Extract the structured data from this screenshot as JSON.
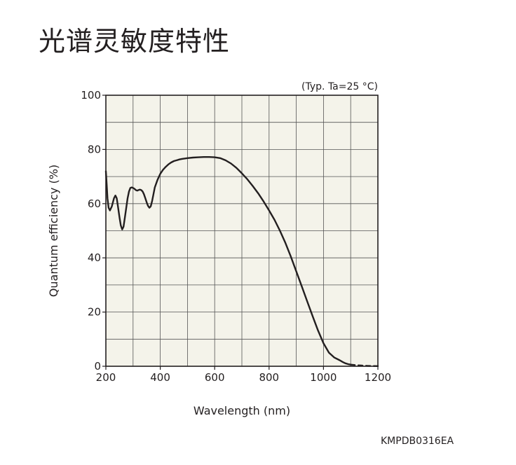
{
  "page_title": "光谱灵敏度特性",
  "figure_code": "KMPDB0316EA",
  "chart_data": {
    "type": "line",
    "title": "",
    "condition": "(Typ. Ta=25 °C)",
    "xlabel": "Wavelength (nm)",
    "ylabel": "Quantum efficiency (%)",
    "xlim": [
      200,
      1200
    ],
    "ylim": [
      0,
      100
    ],
    "x_ticks": [
      200,
      400,
      600,
      800,
      1000,
      1200
    ],
    "y_ticks": [
      0,
      20,
      40,
      60,
      80,
      100
    ],
    "x_grid_step": 100,
    "y_grid_step": 10,
    "grid": true,
    "plot_background": "#f4f3ea",
    "line_color": "#231f20",
    "grid_color": "#555555",
    "series": [
      {
        "style": "solid",
        "x": [
          200,
          203,
          206,
          210,
          215,
          222,
          230,
          235,
          240,
          245,
          250,
          255,
          260,
          265,
          270,
          275,
          280,
          285,
          290,
          295,
          300,
          305,
          310,
          315,
          320,
          325,
          330,
          335,
          340,
          345,
          350,
          355,
          360,
          365,
          370,
          375,
          380,
          390,
          400,
          410,
          420,
          430,
          440,
          450,
          460,
          470,
          480,
          500,
          520,
          540,
          560,
          580,
          600,
          620,
          640,
          660,
          680,
          700,
          720,
          740,
          760,
          780,
          800,
          820,
          840,
          860,
          880,
          900,
          920,
          940,
          960,
          980,
          1000,
          1020,
          1040,
          1060,
          1070,
          1080,
          1090,
          1100
        ],
        "y": [
          72,
          67,
          62,
          58.5,
          57.5,
          59,
          62,
          63,
          62,
          58.5,
          55,
          52,
          50.5,
          51.5,
          55,
          58.5,
          62,
          64.5,
          65.8,
          66,
          65.8,
          65.5,
          65,
          64.8,
          65,
          65.2,
          65,
          64.5,
          63.5,
          62,
          60.5,
          59.2,
          58.5,
          59,
          61,
          63.5,
          66,
          68.8,
          71,
          72.5,
          73.6,
          74.5,
          75.2,
          75.7,
          76,
          76.3,
          76.5,
          76.8,
          77,
          77.1,
          77.2,
          77.2,
          77.1,
          76.8,
          76,
          74.8,
          73.2,
          71.2,
          69,
          66.5,
          63.8,
          60.8,
          57.5,
          54,
          50,
          45.5,
          40.5,
          35,
          29.5,
          24,
          18.5,
          13.2,
          8.5,
          5,
          3.2,
          2.2,
          1.6,
          1.1,
          0.8,
          0.6
        ]
      },
      {
        "style": "dashed",
        "x": [
          1100,
          1120,
          1140,
          1160,
          1180,
          1200
        ],
        "y": [
          0.6,
          0.4,
          0.25,
          0.15,
          0.08,
          0.05
        ]
      }
    ]
  }
}
